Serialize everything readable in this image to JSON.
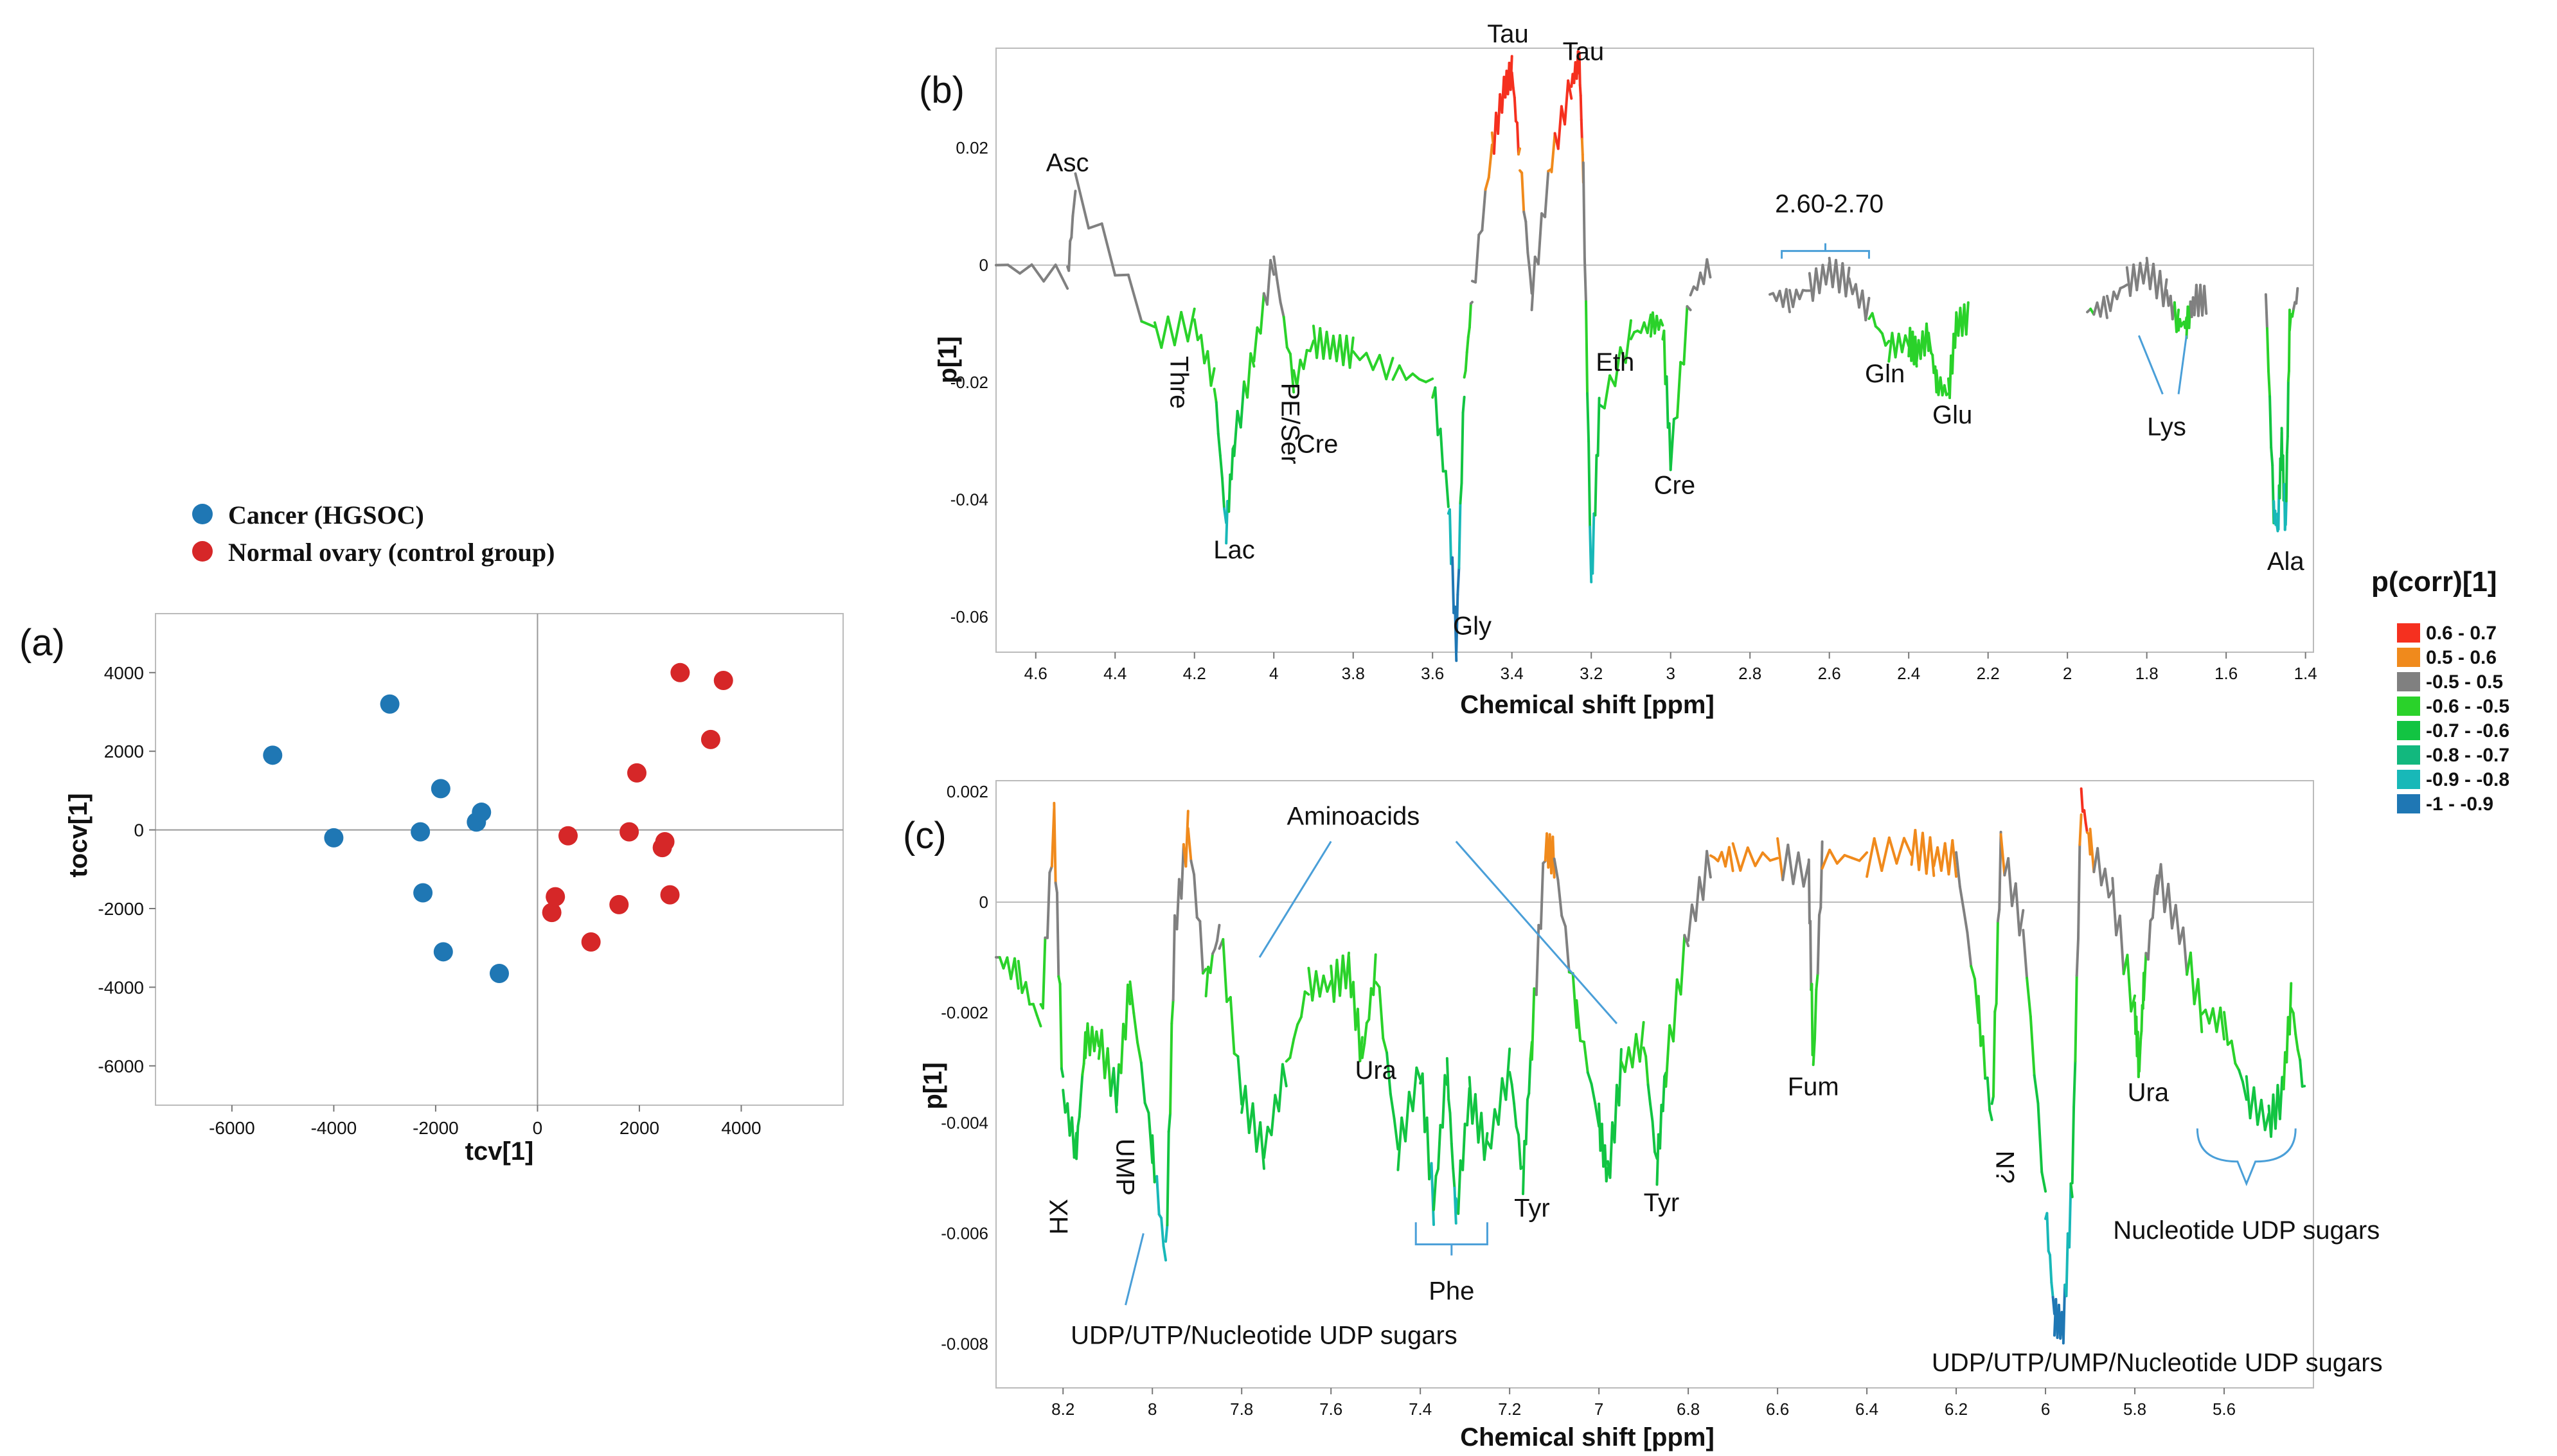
{
  "panels": {
    "a": "(a)",
    "b": "(b)",
    "c": "(c)"
  },
  "legend_corr": {
    "title": "p(corr)[1]",
    "items": [
      {
        "label": "0.6 - 0.7",
        "color": "#f5301f"
      },
      {
        "label": "0.5 - 0.6",
        "color": "#f08a1c"
      },
      {
        "label": "-0.5 - 0.5",
        "color": "#808080"
      },
      {
        "label": "-0.6 - -0.5",
        "color": "#2ad22a"
      },
      {
        "label": "-0.7 - -0.6",
        "color": "#12c442"
      },
      {
        "label": "-0.8 - -0.7",
        "color": "#12b87e"
      },
      {
        "label": "-0.9 - -0.8",
        "color": "#18b8b8"
      },
      {
        "label": "-1 - -0.9",
        "color": "#1f77b4"
      }
    ]
  },
  "chart_data": [
    {
      "id": "a",
      "type": "scatter",
      "xlabel": "tcv[1]",
      "ylabel": "tocv[1]",
      "xlim": [
        -7500,
        6000
      ],
      "ylim": [
        -7000,
        5500
      ],
      "xticks": [
        -6000,
        -4000,
        -2000,
        0,
        2000,
        4000
      ],
      "yticks": [
        -6000,
        -4000,
        -2000,
        0,
        2000,
        4000
      ],
      "series": [
        {
          "name": "Cancer (HGSOC)",
          "color": "#1f77b4",
          "points": [
            [
              -5200,
              1900
            ],
            [
              -4000,
              -200
            ],
            [
              -2900,
              3200
            ],
            [
              -2300,
              -50
            ],
            [
              -2250,
              -1600
            ],
            [
              -1900,
              1050
            ],
            [
              -1850,
              -3100
            ],
            [
              -1200,
              200
            ],
            [
              -1100,
              450
            ],
            [
              -750,
              -3650
            ]
          ]
        },
        {
          "name": "Normal ovary (control group)",
          "color": "#d62728",
          "points": [
            [
              280,
              -2100
            ],
            [
              350,
              -1700
            ],
            [
              600,
              -150
            ],
            [
              1050,
              -2850
            ],
            [
              1600,
              -1900
            ],
            [
              1800,
              -50
            ],
            [
              1950,
              1450
            ],
            [
              2450,
              -450
            ],
            [
              2500,
              -300
            ],
            [
              2600,
              -1650
            ],
            [
              2800,
              4000
            ],
            [
              3400,
              2300
            ],
            [
              3650,
              3800
            ]
          ]
        }
      ]
    },
    {
      "id": "b",
      "type": "line",
      "xlabel": "Chemical shift [ppm]",
      "ylabel": "p[1]",
      "xlim": [
        4.7,
        1.38
      ],
      "ylim": [
        -0.066,
        0.037
      ],
      "xticks": [
        4.6,
        4.4,
        4.2,
        4,
        3.8,
        3.6,
        3.4,
        3.2,
        3,
        2.8,
        2.6,
        2.4,
        2.2,
        2,
        1.8,
        1.6,
        1.4
      ],
      "yticks": [
        0.02,
        0,
        -0.02,
        -0.04,
        -0.06
      ],
      "segments": [
        {
          "name": "seg1",
          "x": [
            4.7,
            4.52,
            4.5,
            4.3,
            4.2,
            4.15,
            4.12,
            4.1,
            4.05,
            4.0,
            3.95,
            3.9,
            3.85,
            3.8,
            3.7,
            3.6,
            3.56,
            3.54,
            3.52,
            3.5,
            3.45,
            3.42,
            3.4,
            3.38,
            3.35,
            3.3,
            3.25,
            3.23,
            3.22,
            3.2,
            3.18,
            3.1,
            3.05,
            3.02,
            3.0,
            2.95,
            2.9
          ],
          "y": [
            0.0,
            -0.002,
            0.013,
            -0.012,
            -0.01,
            -0.02,
            -0.045,
            -0.03,
            -0.015,
            0.001,
            -0.02,
            -0.013,
            -0.014,
            -0.015,
            -0.018,
            -0.02,
            -0.04,
            -0.065,
            -0.02,
            -0.005,
            0.02,
            0.03,
            0.033,
            0.018,
            -0.005,
            0.018,
            0.031,
            0.035,
            0.015,
            -0.055,
            -0.025,
            -0.012,
            -0.01,
            -0.01,
            -0.033,
            -0.005,
            0.0
          ]
        },
        {
          "name": "seg2",
          "x": [
            2.75,
            2.7,
            2.65,
            2.6,
            2.55,
            2.5,
            2.45,
            2.4,
            2.38,
            2.35,
            2.33,
            2.3,
            2.28,
            2.25
          ],
          "y": [
            -0.005,
            -0.006,
            -0.004,
            -0.001,
            -0.003,
            -0.008,
            -0.014,
            -0.013,
            -0.015,
            -0.012,
            -0.02,
            -0.022,
            -0.01,
            -0.009
          ]
        },
        {
          "name": "seg3",
          "x": [
            1.95,
            1.9,
            1.85,
            1.8,
            1.75,
            1.72,
            1.7,
            1.68,
            1.65
          ],
          "y": [
            -0.008,
            -0.007,
            -0.003,
            -0.001,
            -0.005,
            -0.01,
            -0.01,
            -0.006,
            -0.006
          ]
        },
        {
          "name": "seg4",
          "x": [
            1.5,
            1.48,
            1.47,
            1.46,
            1.45,
            1.44,
            1.42
          ],
          "y": [
            -0.005,
            -0.042,
            -0.045,
            -0.03,
            -0.045,
            -0.01,
            -0.005
          ]
        }
      ],
      "annotations": [
        {
          "text": "Asc",
          "x": 4.52,
          "y": 0.016
        },
        {
          "text": "Tau",
          "x": 3.41,
          "y": 0.038
        },
        {
          "text": "Tau",
          "x": 3.22,
          "y": 0.035
        },
        {
          "text": "2.60-2.70",
          "x": 2.6,
          "y": 0.009
        },
        {
          "text": "Thre",
          "x": 4.26,
          "y": -0.02,
          "rotate": 90
        },
        {
          "text": "PE/Ser",
          "x": 3.98,
          "y": -0.027,
          "rotate": 90
        },
        {
          "text": "Cre",
          "x": 3.89,
          "y": -0.032
        },
        {
          "text": "Lac",
          "x": 4.1,
          "y": -0.05
        },
        {
          "text": "Gly",
          "x": 3.5,
          "y": -0.063
        },
        {
          "text": "Eth",
          "x": 3.14,
          "y": -0.018
        },
        {
          "text": "Cre",
          "x": 2.99,
          "y": -0.039
        },
        {
          "text": "Gln",
          "x": 2.46,
          "y": -0.02
        },
        {
          "text": "Glu",
          "x": 2.29,
          "y": -0.027
        },
        {
          "text": "Lys",
          "x": 1.75,
          "y": -0.029
        },
        {
          "text": "Ala",
          "x": 1.45,
          "y": -0.052
        }
      ]
    },
    {
      "id": "c",
      "type": "line",
      "xlabel": "Chemical shift [ppm]",
      "ylabel": "p[1]",
      "xlim": [
        8.35,
        5.4
      ],
      "ylim": [
        -0.0088,
        0.0022
      ],
      "xticks": [
        8.2,
        8,
        7.8,
        7.6,
        7.4,
        7.2,
        7,
        6.8,
        6.6,
        6.4,
        6.2,
        6,
        5.8,
        5.6
      ],
      "yticks": [
        0.002,
        0,
        -0.002,
        -0.004,
        -0.006,
        -0.008
      ],
      "x": [
        8.35,
        8.3,
        8.25,
        8.22,
        8.2,
        8.17,
        8.15,
        8.12,
        8.08,
        8.05,
        8.0,
        7.97,
        7.95,
        7.92,
        7.88,
        7.85,
        7.8,
        7.75,
        7.7,
        7.65,
        7.6,
        7.56,
        7.53,
        7.5,
        7.45,
        7.4,
        7.37,
        7.34,
        7.32,
        7.29,
        7.25,
        7.2,
        7.17,
        7.15,
        7.12,
        7.1,
        7.05,
        7.0,
        6.98,
        6.95,
        6.9,
        6.87,
        6.85,
        6.8,
        6.75,
        6.7,
        6.6,
        6.53,
        6.52,
        6.5,
        6.4,
        6.3,
        6.25,
        6.2,
        6.15,
        6.12,
        6.1,
        6.05,
        6.0,
        5.98,
        5.96,
        5.94,
        5.92,
        5.9,
        5.85,
        5.8,
        5.79,
        5.78,
        5.75,
        5.7,
        5.65,
        5.6,
        5.55,
        5.5,
        5.47,
        5.45,
        5.42
      ],
      "y": [
        -0.001,
        -0.0013,
        -0.0022,
        0.0015,
        -0.0035,
        -0.0045,
        -0.0025,
        -0.0025,
        -0.0035,
        -0.0015,
        -0.0045,
        -0.0065,
        -0.0005,
        0.0013,
        -0.0015,
        -0.0005,
        -0.0035,
        -0.0045,
        -0.003,
        -0.0015,
        -0.0015,
        -0.0012,
        -0.0028,
        -0.0012,
        -0.0045,
        -0.003,
        -0.0055,
        -0.003,
        -0.0057,
        -0.0035,
        -0.0045,
        -0.003,
        -0.005,
        -0.0025,
        0.001,
        0.0008,
        -0.002,
        -0.004,
        -0.005,
        -0.003,
        -0.0025,
        -0.0048,
        -0.003,
        -0.0005,
        0.0008,
        0.0008,
        0.0008,
        0.0005,
        -0.003,
        0.0008,
        0.0008,
        0.001,
        0.0008,
        0.0008,
        -0.002,
        -0.004,
        0.001,
        -0.0005,
        -0.0055,
        -0.0075,
        -0.0077,
        -0.005,
        0.0019,
        0.001,
        0.0001,
        -0.002,
        -0.003,
        -0.0015,
        0.0005,
        -0.0005,
        -0.002,
        -0.0022,
        -0.0035,
        -0.004,
        -0.0035,
        -0.0018,
        -0.0035
      ],
      "annotations": [
        {
          "text": "Aminoacids",
          "x": 7.55,
          "y": 0.0014
        },
        {
          "text": "HX",
          "x": 8.19,
          "y": -0.0057,
          "rotate": -90
        },
        {
          "text": "UMP",
          "x": 8.08,
          "y": -0.0048,
          "rotate": 90
        },
        {
          "text": "UDP/UTP/Nucleotide UDP sugars",
          "x": 7.75,
          "y": -0.008
        },
        {
          "text": "Ura",
          "x": 7.5,
          "y": -0.0032
        },
        {
          "text": "Phe",
          "x": 7.33,
          "y": -0.0072
        },
        {
          "text": "Tyr",
          "x": 7.15,
          "y": -0.0057
        },
        {
          "text": "Tyr",
          "x": 6.86,
          "y": -0.0056
        },
        {
          "text": "Fum",
          "x": 6.52,
          "y": -0.0035
        },
        {
          "text": "N?",
          "x": 6.11,
          "y": -0.0048,
          "rotate": 90
        },
        {
          "text": "Ura",
          "x": 5.77,
          "y": -0.0036
        },
        {
          "text": "Nucleotide UDP sugars",
          "x": 5.55,
          "y": -0.0061
        },
        {
          "text": "UDP/UTP/UMP/Nucleotide UDP sugars",
          "x": 5.75,
          "y": -0.0085
        }
      ]
    }
  ]
}
